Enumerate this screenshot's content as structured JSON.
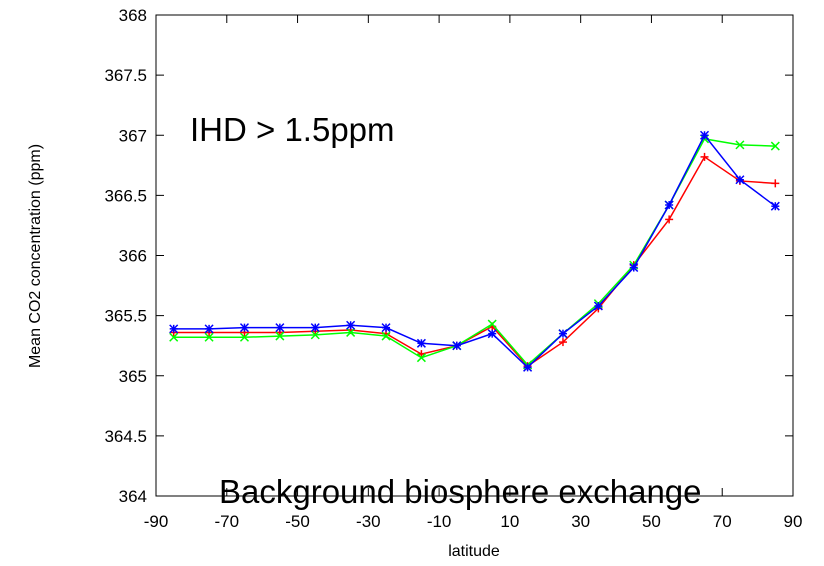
{
  "chart_data": {
    "type": "line",
    "title": "",
    "xlabel": "latitude",
    "ylabel": "Mean CO2 concentration (ppm)",
    "xlim": [
      -90,
      90
    ],
    "ylim": [
      364,
      368
    ],
    "xticks": [
      -90,
      -70,
      -50,
      -30,
      -10,
      10,
      30,
      50,
      70,
      90
    ],
    "yticks": [
      364,
      364.5,
      365,
      365.5,
      366,
      366.5,
      367,
      367.5,
      368
    ],
    "x": [
      -85,
      -75,
      -65,
      -55,
      -45,
      -35,
      -25,
      -15,
      -5,
      5,
      15,
      25,
      35,
      45,
      55,
      65,
      75,
      85
    ],
    "series": [
      {
        "color": "#ff0000",
        "marker": "plus",
        "values": [
          365.36,
          365.36,
          365.36,
          365.36,
          365.37,
          365.38,
          365.35,
          365.18,
          365.25,
          365.41,
          365.08,
          365.28,
          365.56,
          365.92,
          366.3,
          366.82,
          366.62,
          366.6
        ]
      },
      {
        "color": "#00ff00",
        "marker": "cross",
        "values": [
          365.32,
          365.32,
          365.32,
          365.33,
          365.34,
          365.36,
          365.33,
          365.15,
          365.25,
          365.43,
          365.09,
          365.35,
          365.6,
          365.92,
          366.42,
          366.97,
          366.92,
          366.91
        ]
      },
      {
        "color": "#0000ff",
        "marker": "star",
        "values": [
          365.39,
          365.39,
          365.4,
          365.4,
          365.4,
          365.42,
          365.4,
          365.27,
          365.25,
          365.35,
          365.07,
          365.35,
          365.58,
          365.9,
          366.42,
          367.0,
          366.63,
          366.41
        ]
      }
    ],
    "annotations": [
      {
        "text": "IHD > 1.5ppm"
      },
      {
        "text": "Background biosphere exchange"
      }
    ],
    "grid": false,
    "legend": "none"
  }
}
